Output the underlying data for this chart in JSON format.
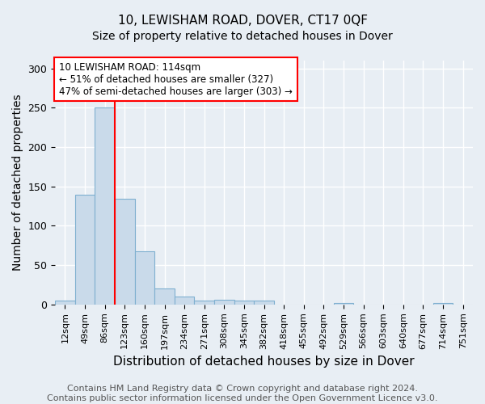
{
  "title": "10, LEWISHAM ROAD, DOVER, CT17 0QF",
  "subtitle": "Size of property relative to detached houses in Dover",
  "xlabel": "Distribution of detached houses by size in Dover",
  "ylabel": "Number of detached properties",
  "footer_line1": "Contains HM Land Registry data © Crown copyright and database right 2024.",
  "footer_line2": "Contains public sector information licensed under the Open Government Licence v3.0.",
  "bar_labels": [
    "12sqm",
    "49sqm",
    "86sqm",
    "123sqm",
    "160sqm",
    "197sqm",
    "234sqm",
    "271sqm",
    "308sqm",
    "345sqm",
    "382sqm",
    "418sqm",
    "455sqm",
    "492sqm",
    "529sqm",
    "566sqm",
    "603sqm",
    "640sqm",
    "677sqm",
    "714sqm",
    "751sqm"
  ],
  "bar_values": [
    5,
    139,
    250,
    134,
    68,
    20,
    10,
    5,
    6,
    5,
    5,
    0,
    0,
    0,
    2,
    0,
    0,
    0,
    0,
    2,
    0
  ],
  "bar_color": "#c9daea",
  "bar_edge_color": "#7fb0d0",
  "red_line_x": 2.5,
  "ylim": [
    0,
    310
  ],
  "yticks": [
    0,
    50,
    100,
    150,
    200,
    250,
    300
  ],
  "annotation_text": "10 LEWISHAM ROAD: 114sqm\n← 51% of detached houses are smaller (327)\n47% of semi-detached houses are larger (303) →",
  "annotation_box_color": "white",
  "annotation_box_edge": "red",
  "background_color": "#e8eef4",
  "grid_color": "#ffffff",
  "title_fontsize": 11,
  "subtitle_fontsize": 10,
  "axis_label_fontsize": 10,
  "tick_fontsize": 8,
  "footer_fontsize": 8,
  "annotation_fontsize": 8.5
}
